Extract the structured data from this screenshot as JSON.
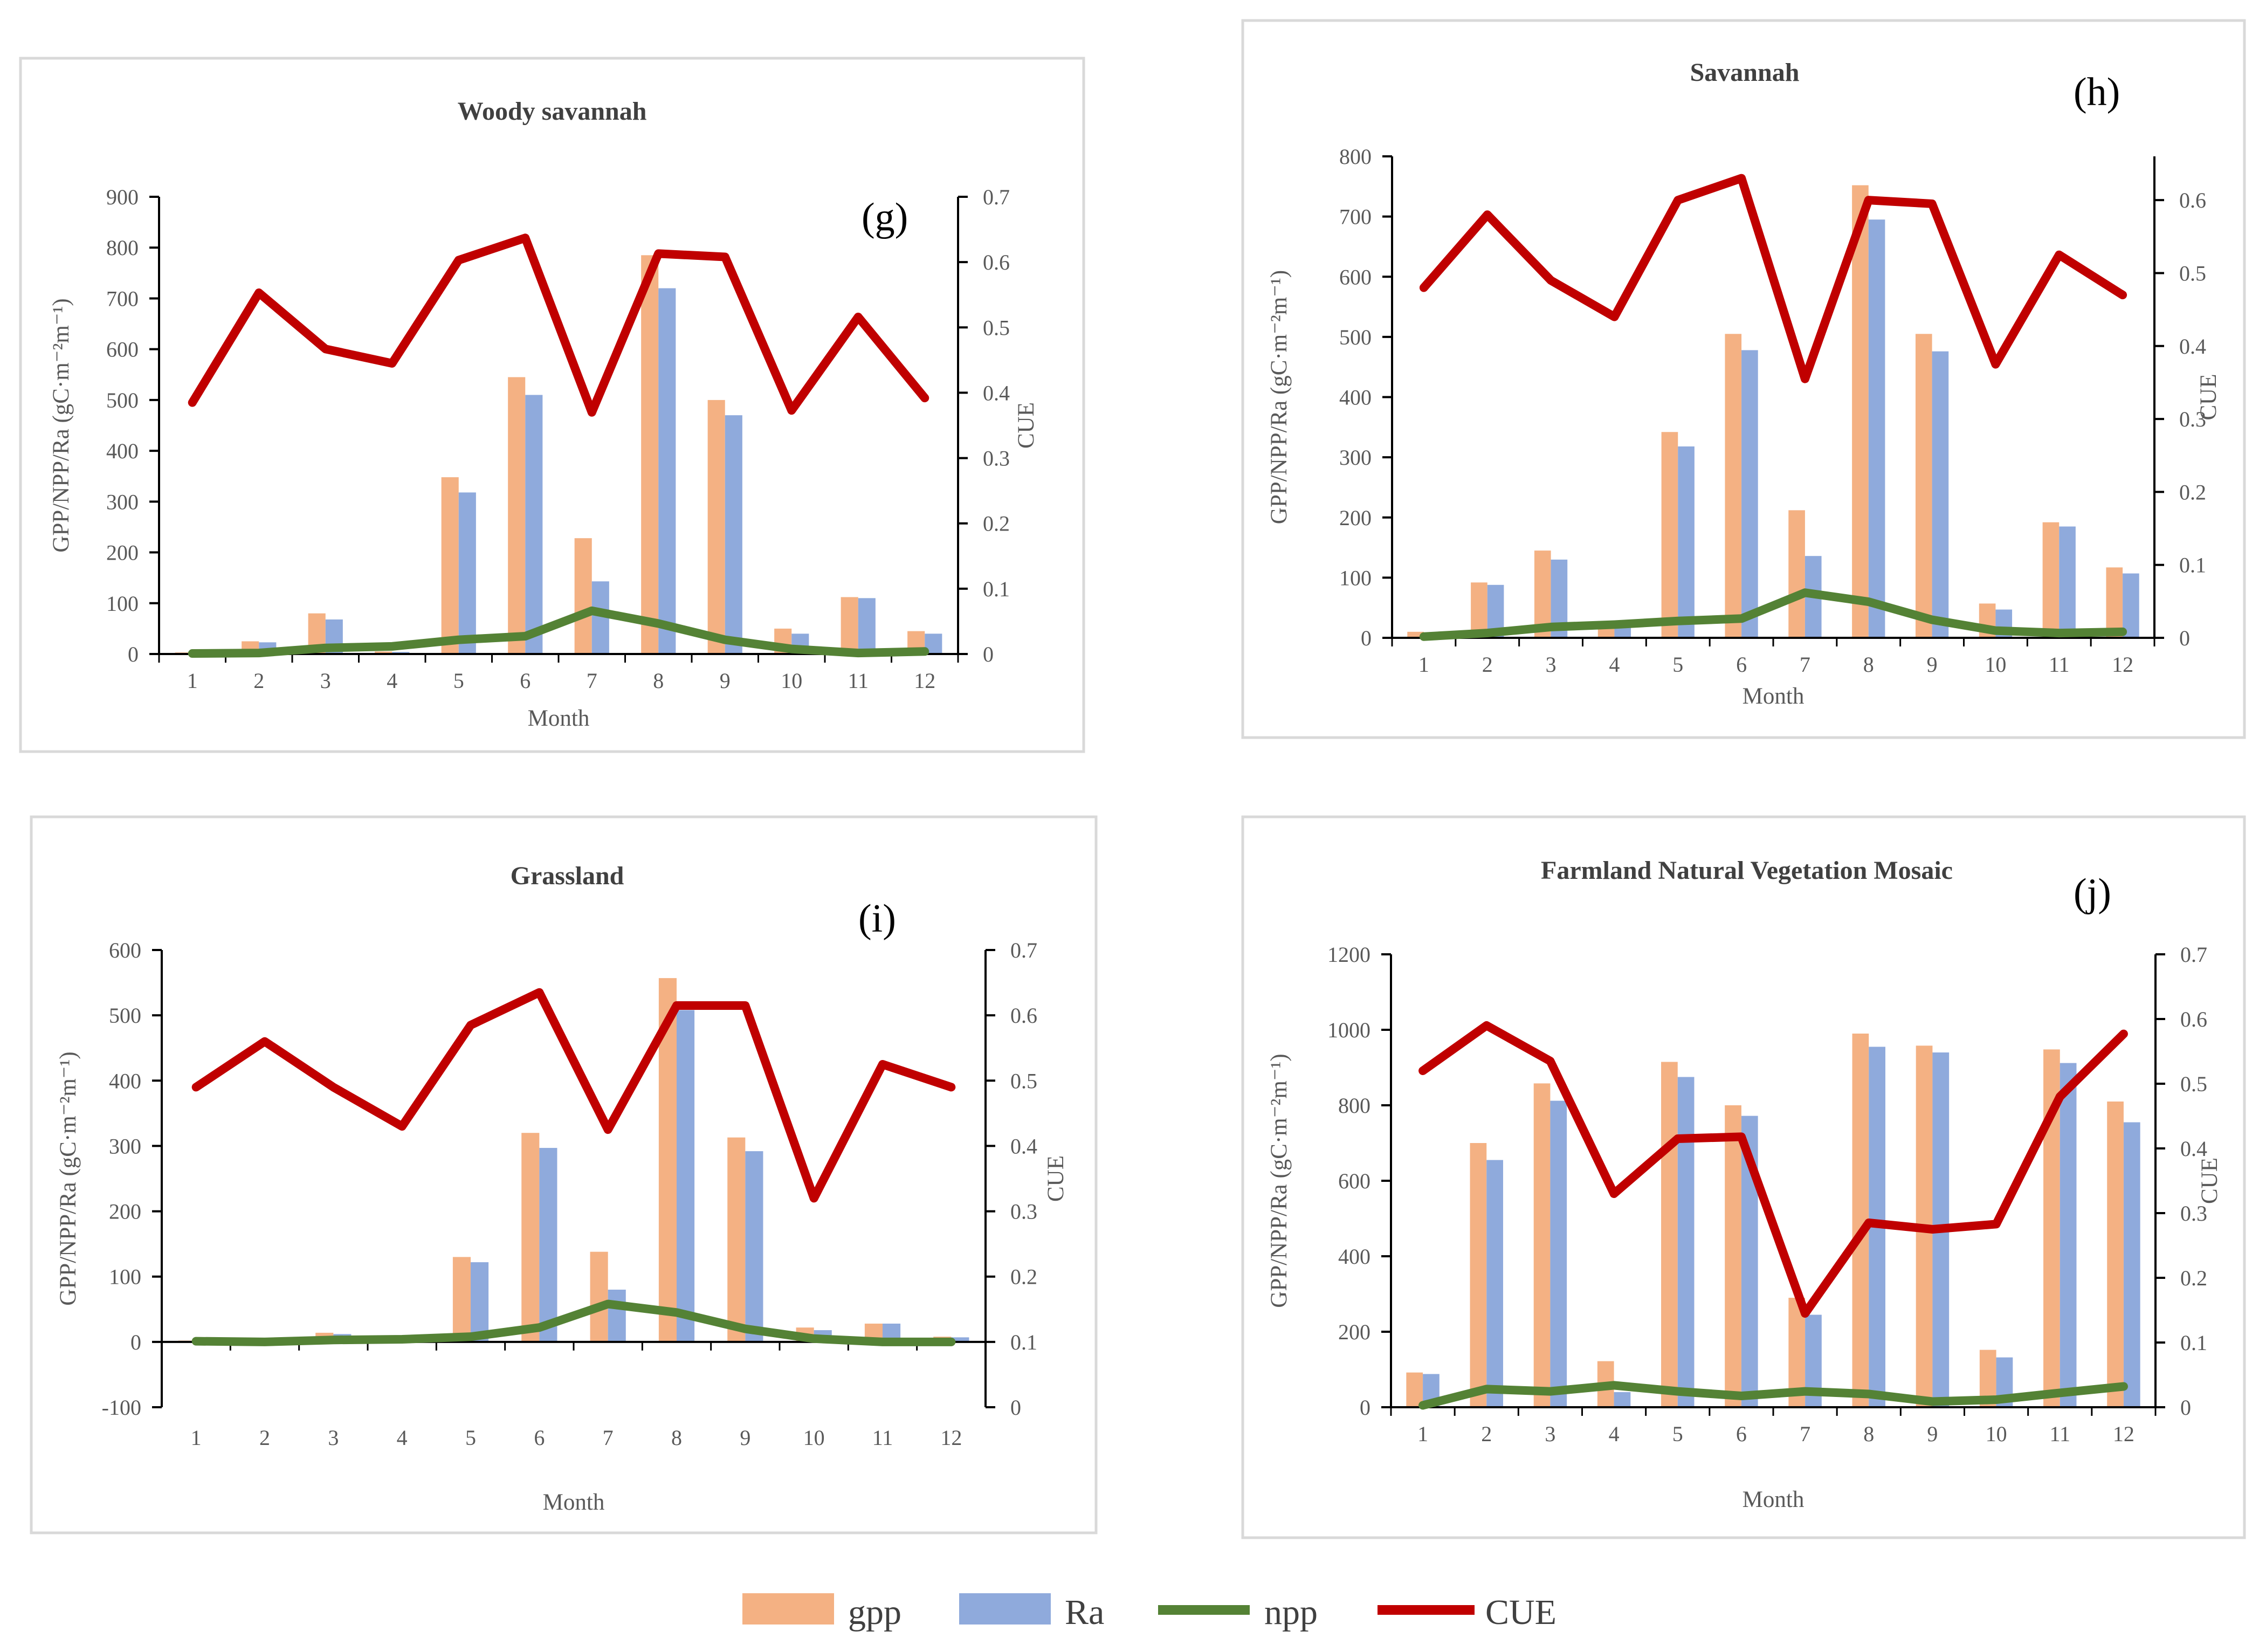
{
  "colors": {
    "gpp": "#f4b183",
    "ra": "#8faadc",
    "npp": "#548235",
    "cue": "#c00000",
    "axis": "#000000",
    "frame": "#d9d9d9"
  },
  "legend": {
    "gpp": "gpp",
    "ra": "Ra",
    "npp": "npp",
    "cue": "CUE"
  },
  "chart_data": [
    {
      "type": "bar",
      "panel": "(g)",
      "title": "Woody savannah",
      "xlabel": "Month",
      "ylabel": "GPP/NPP/Ra (gC·m⁻²m⁻¹)",
      "y2label": "CUE",
      "categories": [
        "1",
        "2",
        "3",
        "4",
        "5",
        "6",
        "7",
        "8",
        "9",
        "10",
        "11",
        "12"
      ],
      "ylim": [
        0,
        900
      ],
      "yticks": [
        0,
        100,
        200,
        300,
        400,
        500,
        600,
        700,
        800,
        900
      ],
      "y2lim": [
        0,
        0.7
      ],
      "y2ticks": [
        0,
        0.1,
        0.2,
        0.3,
        0.4,
        0.5,
        0.6,
        0.7
      ],
      "series": [
        {
          "name": "gpp",
          "kind": "bar",
          "values": [
            3,
            25,
            80,
            5,
            348,
            545,
            228,
            785,
            500,
            50,
            112,
            45
          ]
        },
        {
          "name": "Ra",
          "kind": "bar",
          "values": [
            2,
            23,
            68,
            4,
            318,
            510,
            143,
            720,
            470,
            40,
            110,
            40
          ]
        },
        {
          "name": "npp",
          "kind": "line",
          "values": [
            1,
            2,
            12,
            15,
            28,
            35,
            85,
            60,
            28,
            10,
            2,
            5
          ]
        },
        {
          "name": "CUE",
          "kind": "line",
          "axis": "right",
          "values": [
            0.385,
            0.553,
            0.467,
            0.445,
            0.603,
            0.637,
            0.37,
            0.613,
            0.608,
            0.373,
            0.516,
            0.392
          ]
        }
      ]
    },
    {
      "type": "bar",
      "panel": "(h)",
      "title": "Savannah",
      "xlabel": "Month",
      "ylabel": "GPP/NPP/Ra (gC·m⁻²m⁻¹)",
      "y2label": "CUE",
      "categories": [
        "1",
        "2",
        "3",
        "4",
        "5",
        "6",
        "7",
        "8",
        "9",
        "10",
        "11",
        "12"
      ],
      "ylim": [
        0,
        800
      ],
      "yticks": [
        0,
        100,
        200,
        300,
        400,
        500,
        600,
        700,
        800
      ],
      "y2lim": [
        0,
        0.66
      ],
      "y2ticks": [
        0,
        0.1,
        0.2,
        0.3,
        0.4,
        0.5,
        0.6
      ],
      "series": [
        {
          "name": "gpp",
          "kind": "bar",
          "values": [
            10,
            92,
            145,
            28,
            342,
            505,
            212,
            752,
            505,
            57,
            192,
            117
          ]
        },
        {
          "name": "Ra",
          "kind": "bar",
          "values": [
            6,
            88,
            130,
            22,
            318,
            478,
            136,
            695,
            476,
            47,
            185,
            107
          ]
        },
        {
          "name": "npp",
          "kind": "line",
          "values": [
            2,
            8,
            18,
            22,
            28,
            32,
            75,
            60,
            30,
            12,
            8,
            10
          ]
        },
        {
          "name": "CUE",
          "kind": "line",
          "axis": "right",
          "values": [
            0.48,
            0.58,
            0.49,
            0.44,
            0.6,
            0.63,
            0.355,
            0.6,
            0.595,
            0.375,
            0.525,
            0.47
          ]
        }
      ]
    },
    {
      "type": "bar",
      "panel": "(i)",
      "title": "Grassland",
      "xlabel": "Month",
      "ylabel": "GPP/NPP/Ra (gC·m⁻²m⁻¹)",
      "y2label": "CUE",
      "categories": [
        "1",
        "2",
        "3",
        "4",
        "5",
        "6",
        "7",
        "8",
        "9",
        "10",
        "11",
        "12"
      ],
      "ylim": [
        -100,
        600
      ],
      "yticks": [
        -100,
        0,
        100,
        200,
        300,
        400,
        500,
        600
      ],
      "y2lim": [
        0,
        0.7
      ],
      "y2ticks": [
        0,
        0.1,
        0.2,
        0.3,
        0.4,
        0.5,
        0.6,
        0.7
      ],
      "series": [
        {
          "name": "gpp",
          "kind": "bar",
          "values": [
            2,
            2,
            14,
            5,
            130,
            320,
            138,
            557,
            313,
            22,
            28,
            8
          ]
        },
        {
          "name": "Ra",
          "kind": "bar",
          "values": [
            1,
            1,
            12,
            4,
            122,
            297,
            80,
            508,
            292,
            18,
            28,
            7
          ]
        },
        {
          "name": "npp",
          "kind": "line",
          "values": [
            1,
            0,
            3,
            4,
            8,
            22,
            58,
            45,
            20,
            5,
            0,
            0
          ]
        },
        {
          "name": "CUE",
          "kind": "line",
          "axis": "right",
          "values": [
            0.49,
            0.56,
            0.49,
            0.43,
            0.585,
            0.635,
            0.425,
            0.615,
            0.615,
            0.32,
            0.525,
            0.49
          ]
        }
      ]
    },
    {
      "type": "bar",
      "panel": "(j)",
      "title": "Farmland Natural Vegetation Mosaic",
      "xlabel": "Month",
      "ylabel": "GPP/NPP/Ra (gC·m⁻²m⁻¹)",
      "y2label": "CUE",
      "categories": [
        "1",
        "2",
        "3",
        "4",
        "5",
        "6",
        "7",
        "8",
        "9",
        "10",
        "11",
        "12"
      ],
      "ylim": [
        0,
        1200
      ],
      "yticks": [
        0,
        200,
        400,
        600,
        800,
        1000,
        1200
      ],
      "y2lim": [
        0,
        0.7
      ],
      "y2ticks": [
        0,
        0.1,
        0.2,
        0.3,
        0.4,
        0.5,
        0.6,
        0.7
      ],
      "series": [
        {
          "name": "gpp",
          "kind": "bar",
          "values": [
            92,
            700,
            858,
            122,
            915,
            800,
            290,
            990,
            958,
            152,
            948,
            810
          ]
        },
        {
          "name": "Ra",
          "kind": "bar",
          "values": [
            88,
            655,
            812,
            40,
            875,
            772,
            245,
            955,
            940,
            132,
            912,
            755
          ]
        },
        {
          "name": "npp",
          "kind": "line",
          "values": [
            5,
            48,
            42,
            58,
            42,
            30,
            42,
            35,
            15,
            20,
            38,
            55
          ]
        },
        {
          "name": "CUE",
          "kind": "line",
          "axis": "right",
          "values": [
            0.52,
            0.59,
            0.535,
            0.33,
            0.415,
            0.418,
            0.145,
            0.285,
            0.275,
            0.283,
            0.48,
            0.577
          ]
        }
      ]
    }
  ]
}
